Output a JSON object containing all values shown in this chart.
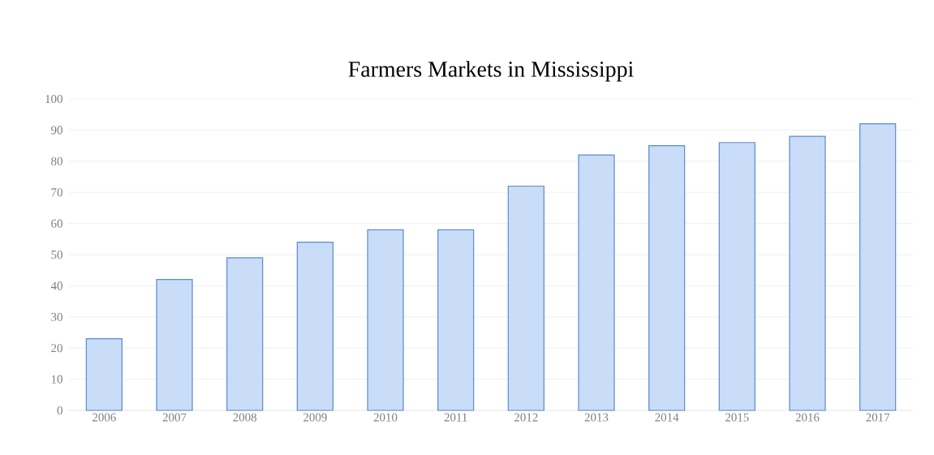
{
  "chart_data": {
    "type": "bar",
    "title": "Farmers Markets in Mississippi",
    "categories": [
      "2006",
      "2007",
      "2008",
      "2009",
      "2010",
      "2011",
      "2012",
      "2013",
      "2014",
      "2015",
      "2016",
      "2017"
    ],
    "values": [
      23,
      42,
      49,
      54,
      58,
      58,
      72,
      82,
      85,
      86,
      88,
      92
    ],
    "color": "#c9dcf8",
    "ylim": [
      0,
      100
    ],
    "yticks": [
      0,
      10,
      20,
      30,
      40,
      50,
      60,
      70,
      80,
      90,
      100
    ],
    "grid": "y"
  }
}
